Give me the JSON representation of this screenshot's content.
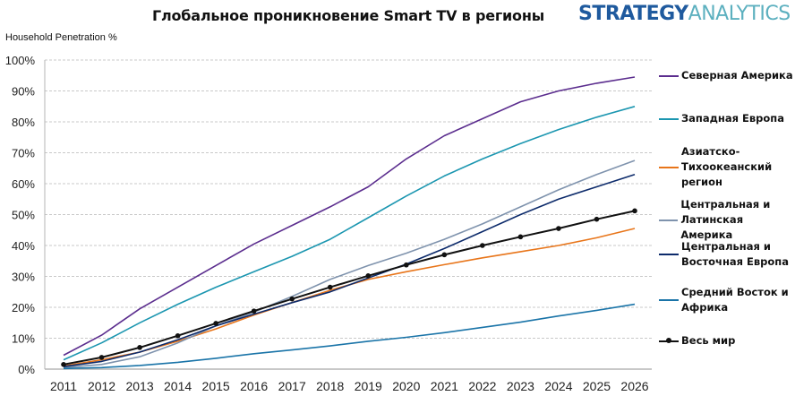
{
  "header": {
    "title": "Глобальное проникновение Smart TV в регионы",
    "logo_part1": "STRATEGY",
    "logo_part2": "ANALYTICS"
  },
  "chart_data": {
    "type": "line",
    "title": "Глобальное проникновение Smart TV в регионы",
    "xlabel": "",
    "ylabel": "Household Penetration %",
    "ylim": [
      0,
      100
    ],
    "y_ticks": [
      "0%",
      "10%",
      "20%",
      "30%",
      "40%",
      "50%",
      "60%",
      "70%",
      "80%",
      "90%",
      "100%"
    ],
    "grid": "horizontal-dashed",
    "legend_position": "right",
    "x": [
      "2011",
      "2012",
      "2013",
      "2014",
      "2015",
      "2016",
      "2017",
      "2018",
      "2019",
      "2020",
      "2021",
      "2022",
      "2023",
      "2024",
      "2025",
      "2026"
    ],
    "series": [
      {
        "name": "Северная Америка",
        "color": "#5b2d8e",
        "marker": false,
        "values": [
          4.5,
          11,
          19.5,
          26.5,
          33.5,
          40.5,
          46.5,
          52.5,
          59,
          68,
          75.5,
          81,
          86.5,
          90,
          92.5,
          94.5
        ]
      },
      {
        "name": "Западная Европа",
        "color": "#1b96b0",
        "marker": false,
        "values": [
          3,
          8.5,
          15,
          21,
          26.5,
          31.5,
          36.5,
          42,
          49,
          56,
          62.5,
          68,
          73,
          77.5,
          81.5,
          85
        ]
      },
      {
        "name": "Азиатско-\nТихоокеанский\nрегион",
        "color": "#e8751a",
        "marker": false,
        "values": [
          1,
          3,
          5.5,
          9,
          13,
          17.5,
          21.5,
          25.5,
          29,
          31.5,
          33.8,
          36,
          38,
          40,
          42.5,
          45.5
        ]
      },
      {
        "name": "Центральная и\nЛатинская Америка",
        "color": "#7f93ad",
        "marker": false,
        "values": [
          0.5,
          1.5,
          4,
          8.5,
          14,
          18.5,
          23.5,
          29,
          33.5,
          37.5,
          42,
          47,
          52.5,
          58,
          63,
          67.5
        ]
      },
      {
        "name": "Центральная и\nВосточная Европа",
        "color": "#0d2b6b",
        "marker": false,
        "values": [
          0.8,
          2.5,
          5.5,
          9.5,
          14,
          17.8,
          21.5,
          25,
          29.5,
          34,
          39,
          44.5,
          50,
          55,
          59,
          63
        ]
      },
      {
        "name": "Средний Восток и\nАфрика",
        "color": "#1a74a8",
        "marker": false,
        "values": [
          0.2,
          0.5,
          1.2,
          2.2,
          3.5,
          5,
          6.2,
          7.5,
          9,
          10.3,
          11.8,
          13.5,
          15.2,
          17.2,
          19,
          21
        ]
      },
      {
        "name": "Весь мир",
        "color": "#111111",
        "marker": true,
        "values": [
          1.5,
          3.8,
          7,
          10.8,
          14.8,
          18.8,
          22.7,
          26.5,
          30.2,
          33.7,
          37,
          40,
          42.8,
          45.5,
          48.5,
          51.2
        ]
      }
    ]
  }
}
